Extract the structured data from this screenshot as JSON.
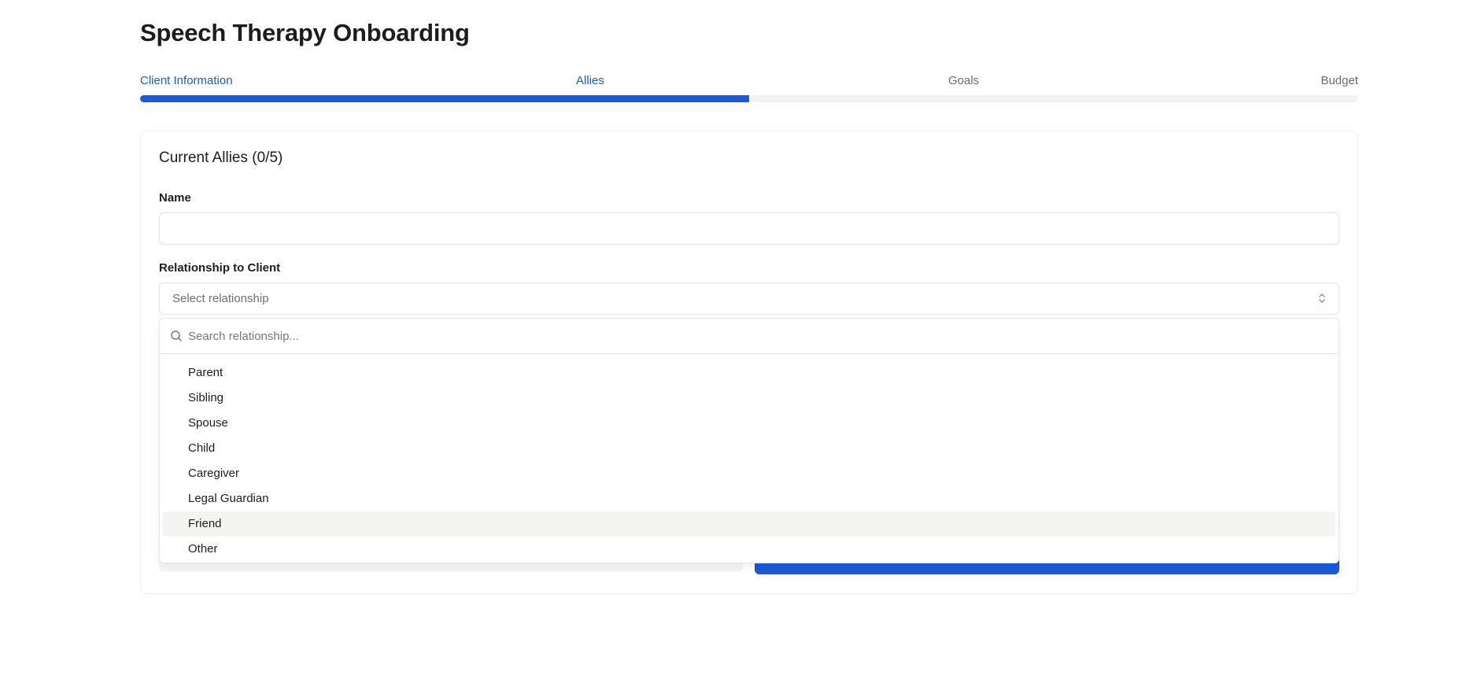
{
  "page": {
    "title": "Speech Therapy Onboarding"
  },
  "steps": [
    {
      "label": "Client Information",
      "state": "active"
    },
    {
      "label": "Allies",
      "state": "active"
    },
    {
      "label": "Goals",
      "state": "inactive"
    },
    {
      "label": "Budget",
      "state": "inactive"
    }
  ],
  "progress": {
    "percent": 50
  },
  "form": {
    "section_title": "Current Allies (0/5)",
    "name_label": "Name",
    "name_value": "",
    "relationship_label": "Relationship to Client",
    "relationship_placeholder": "Select relationship"
  },
  "dropdown": {
    "search_placeholder": "Search relationship...",
    "options": [
      "Parent",
      "Sibling",
      "Spouse",
      "Child",
      "Caregiver",
      "Legal Guardian",
      "Friend",
      "Other"
    ],
    "highlighted": "Friend"
  },
  "icons": {
    "search": "search-icon",
    "select_toggle": "chevrons-up-down-icon"
  },
  "colors": {
    "accent": "#1a5ad8",
    "track": "#f2f2f2",
    "highlight": "#f4f4f2"
  }
}
